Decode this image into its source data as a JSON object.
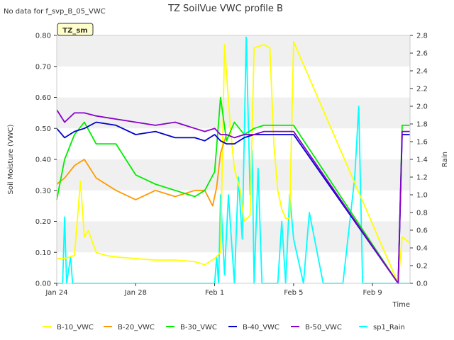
{
  "no_data_note": "No data for f_svp_B_05_VWC",
  "station_badge": "TZ_sm",
  "chart_data": {
    "type": "line",
    "title": "TZ SoilVue VWC profile B",
    "xlabel": "Time",
    "ylabel": "Soil Moisture (VWC)",
    "y2label": "Rain",
    "ylim": [
      0,
      0.8
    ],
    "y2lim": [
      0,
      2.8
    ],
    "yticks": [
      0.0,
      0.1,
      0.2,
      0.3,
      0.4,
      0.5,
      0.6,
      0.7,
      0.8
    ],
    "ytick_labels": [
      "0.00",
      "0.10",
      "0.20",
      "0.30",
      "0.40",
      "0.50",
      "0.60",
      "0.70",
      "0.80"
    ],
    "y2ticks": [
      0.0,
      0.2,
      0.4,
      0.6,
      0.8,
      1.0,
      1.2,
      1.4,
      1.6,
      1.8,
      2.0,
      2.2,
      2.4,
      2.6,
      2.8
    ],
    "y2tick_labels": [
      "0.0",
      "0.2",
      "0.4",
      "0.6",
      "0.8",
      "1.0",
      "1.2",
      "1.4",
      "1.6",
      "1.8",
      "2.0",
      "2.2",
      "2.4",
      "2.6",
      "2.8"
    ],
    "x_range_days": [
      0,
      17.9
    ],
    "xticks": [
      {
        "day": 0,
        "label": "Jan 24"
      },
      {
        "day": 4,
        "label": "Jan 28"
      },
      {
        "day": 8,
        "label": "Feb 1"
      },
      {
        "day": 12,
        "label": "Feb 5"
      },
      {
        "day": 16,
        "label": "Feb 9"
      }
    ],
    "grid": "alternating horizontal bands",
    "legend_position": "bottom",
    "series": [
      {
        "name": "B-10_VWC",
        "color": "#ffff00",
        "axis": "left",
        "x": [
          0,
          0.4,
          0.9,
          1.2,
          1.4,
          1.6,
          2.0,
          2.5,
          3,
          4,
          5,
          6,
          7,
          7.5,
          8,
          8.3,
          8.5,
          8.8,
          9.0,
          9.3,
          9.5,
          9.8,
          10,
          10.5,
          10.8,
          11,
          11.2,
          11.4,
          11.6,
          11.8,
          12,
          17.3,
          17.5,
          17.9
        ],
        "y": [
          0.08,
          0.08,
          0.09,
          0.33,
          0.15,
          0.17,
          0.1,
          0.09,
          0.085,
          0.08,
          0.075,
          0.075,
          0.07,
          0.06,
          0.08,
          0.1,
          0.77,
          0.5,
          0.37,
          0.3,
          0.2,
          0.22,
          0.76,
          0.77,
          0.76,
          0.45,
          0.3,
          0.24,
          0.21,
          0.21,
          0.78,
          0.0,
          0.15,
          0.13
        ]
      },
      {
        "name": "B-20_VWC",
        "color": "#ff9900",
        "axis": "left",
        "x": [
          0,
          0.4,
          0.9,
          1.4,
          2,
          3,
          4,
          5,
          6,
          7,
          7.5,
          7.9,
          8.1,
          8.3,
          8.6
        ],
        "y": [
          0.32,
          0.34,
          0.38,
          0.4,
          0.34,
          0.3,
          0.27,
          0.3,
          0.28,
          0.3,
          0.3,
          0.25,
          0.31,
          0.42,
          0.48
        ]
      },
      {
        "name": "B-30_VWC",
        "color": "#00ee00",
        "axis": "left",
        "x": [
          0,
          0.4,
          0.9,
          1.4,
          2,
          3,
          4,
          5,
          6,
          7,
          7.5,
          8,
          8.3,
          8.6,
          9,
          9.5,
          10,
          10.5,
          11,
          12,
          17.3,
          17.5,
          17.9
        ],
        "y": [
          0.27,
          0.4,
          0.48,
          0.52,
          0.45,
          0.45,
          0.35,
          0.32,
          0.3,
          0.28,
          0.3,
          0.36,
          0.6,
          0.46,
          0.52,
          0.48,
          0.5,
          0.51,
          0.51,
          0.51,
          0.0,
          0.51,
          0.51
        ]
      },
      {
        "name": "B-40_VWC",
        "color": "#0000cc",
        "axis": "left",
        "x": [
          0,
          0.4,
          0.9,
          1.4,
          2,
          3,
          4,
          5,
          6,
          7,
          7.5,
          8,
          8.3,
          8.6,
          9,
          9.5,
          10,
          10.5,
          11,
          12,
          17.3,
          17.5,
          17.9
        ],
        "y": [
          0.5,
          0.47,
          0.49,
          0.5,
          0.52,
          0.51,
          0.48,
          0.49,
          0.47,
          0.47,
          0.46,
          0.48,
          0.46,
          0.45,
          0.45,
          0.47,
          0.48,
          0.48,
          0.48,
          0.48,
          0.0,
          0.48,
          0.48
        ]
      },
      {
        "name": "B-50_VWC",
        "color": "#8800cc",
        "axis": "left",
        "x": [
          0,
          0.4,
          0.9,
          1.4,
          2,
          3,
          4,
          5,
          6,
          7,
          7.5,
          8,
          8.3,
          8.6,
          9,
          9.5,
          10,
          10.5,
          11,
          12,
          17.3,
          17.5,
          17.9
        ],
        "y": [
          0.56,
          0.52,
          0.55,
          0.55,
          0.54,
          0.53,
          0.52,
          0.51,
          0.52,
          0.5,
          0.49,
          0.5,
          0.48,
          0.48,
          0.47,
          0.48,
          0.48,
          0.49,
          0.49,
          0.49,
          0.0,
          0.49,
          0.49
        ]
      },
      {
        "name": "sp1_Rain",
        "color": "#00ffff",
        "axis": "right",
        "x": [
          0,
          0.3,
          0.4,
          0.5,
          0.7,
          0.8,
          1.0,
          8.0,
          8.1,
          8.2,
          8.3,
          8.5,
          8.7,
          9.0,
          9.2,
          9.4,
          9.6,
          9.8,
          9.9,
          10.0,
          10.2,
          10.4,
          10.7,
          11.2,
          11.4,
          11.6,
          11.8,
          12.0,
          12.5,
          12.8,
          13.5,
          14.5,
          15.1,
          15.3,
          15.5,
          17.9
        ],
        "y": [
          0,
          0,
          0.75,
          0,
          0.3,
          0,
          0,
          0,
          0.3,
          0,
          1.0,
          0.1,
          1.0,
          0,
          1.2,
          0.5,
          2.78,
          1.0,
          1.5,
          0,
          1.3,
          0,
          0,
          0,
          0.7,
          0,
          1.0,
          0.5,
          0,
          0.8,
          0,
          0,
          1.2,
          2.0,
          0,
          0
        ]
      }
    ]
  }
}
